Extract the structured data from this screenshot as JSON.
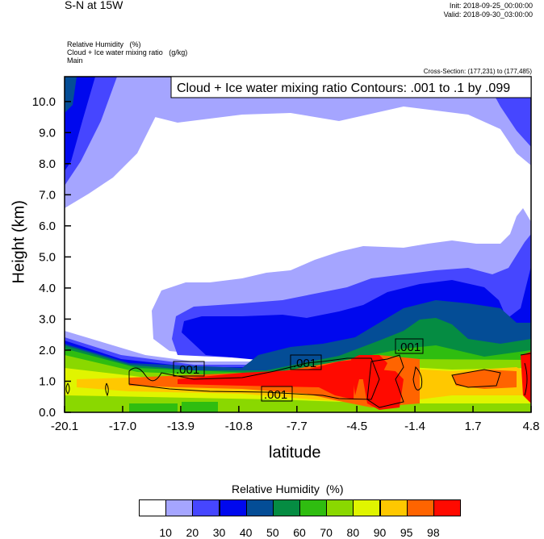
{
  "header": {
    "title": "S-N at 15W",
    "init": "Init: 2018-09-25_00:00:00",
    "valid": "Valid: 2018-09-30_03:00:00"
  },
  "fields": [
    "Relative Humidity   (%)",
    "Cloud + Ice water mixing ratio   (g/kg)",
    "Main"
  ],
  "cross_section": "Cross-Section: (177,231) to (177,485)",
  "chart_data": {
    "type": "heatmap",
    "title": "Cloud + Ice water mixing ratio Contours: .001 to .1 by .099",
    "xlabel": "latitude",
    "ylabel": "Height (km)",
    "xlim": [
      -20.1,
      4.8
    ],
    "ylim": [
      0,
      10.8
    ],
    "xticks": [
      "-20.1",
      "-17.0",
      "-13.9",
      "-10.8",
      "-7.7",
      "-4.5",
      "-1.4",
      "1.7",
      "4.8"
    ],
    "xtick_values": [
      -20.1,
      -17.0,
      -13.9,
      -10.8,
      -7.7,
      -4.5,
      -1.4,
      1.7,
      4.8
    ],
    "yticks": [
      "0.0",
      "1.0",
      "2.0",
      "3.0",
      "4.0",
      "5.0",
      "6.0",
      "7.0",
      "8.0",
      "9.0",
      "10.0"
    ],
    "contour_labels": [
      ".001",
      ".001",
      ".001",
      ".001"
    ],
    "colorbar": {
      "title": "Relative Humidity  (%)",
      "labels": [
        "10",
        "20",
        "30",
        "40",
        "50",
        "60",
        "70",
        "80",
        "90",
        "95",
        "98"
      ],
      "colors": [
        "#ffffff",
        "#a5a5ff",
        "#4646ff",
        "#0008ee",
        "#044d96",
        "#058c42",
        "#2fbd10",
        "#8ad800",
        "#e0f500",
        "#ffc800",
        "#ff6400",
        "#ff0a00"
      ]
    }
  }
}
